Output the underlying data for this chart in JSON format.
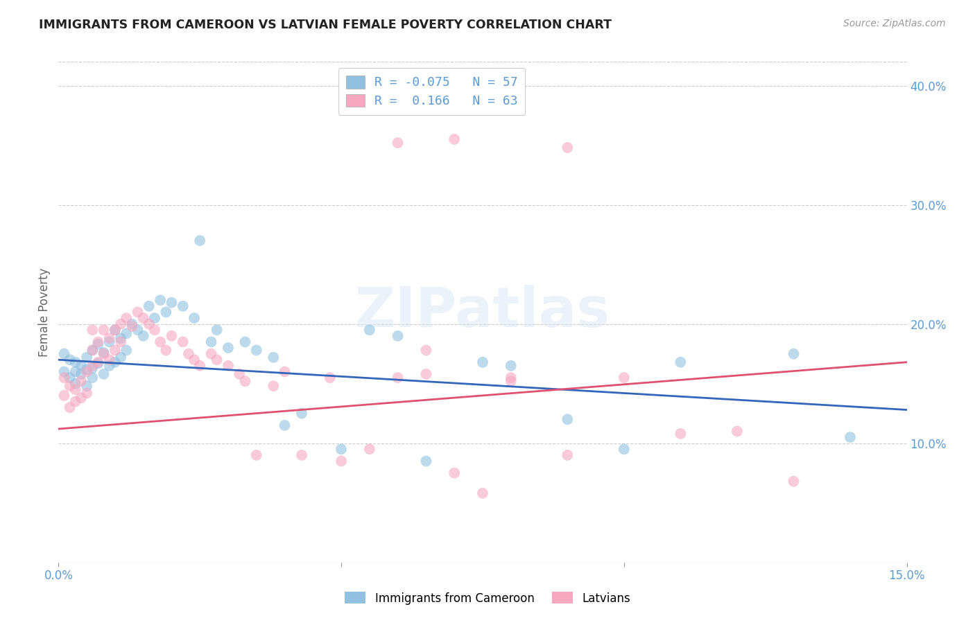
{
  "title": "IMMIGRANTS FROM CAMEROON VS LATVIAN FEMALE POVERTY CORRELATION CHART",
  "source": "Source: ZipAtlas.com",
  "ylabel": "Female Poverty",
  "xlim": [
    0.0,
    0.15
  ],
  "ylim": [
    0.0,
    0.42
  ],
  "yticks_right": [
    0.1,
    0.2,
    0.3,
    0.4
  ],
  "ytick_labels_right": [
    "10.0%",
    "20.0%",
    "30.0%",
    "40.0%"
  ],
  "blue_color": "#92c0e0",
  "pink_color": "#f5a8c0",
  "blue_line_color": "#3366bb",
  "pink_line_color": "#e05070",
  "legend_label1": "Immigrants from Cameroon",
  "legend_label2": "Latvians",
  "R1": -0.075,
  "N1": 57,
  "R2": 0.166,
  "N2": 63,
  "watermark": "ZIPatlas",
  "background_color": "#ffffff",
  "grid_color": "#cccccc",
  "title_color": "#222222",
  "axis_label_color": "#5b9bd5",
  "blue_scatter_x": [
    0.001,
    0.001,
    0.002,
    0.002,
    0.003,
    0.003,
    0.003,
    0.004,
    0.004,
    0.005,
    0.005,
    0.005,
    0.006,
    0.006,
    0.006,
    0.007,
    0.007,
    0.008,
    0.008,
    0.009,
    0.009,
    0.01,
    0.01,
    0.011,
    0.011,
    0.012,
    0.012,
    0.013,
    0.014,
    0.015,
    0.016,
    0.017,
    0.018,
    0.019,
    0.02,
    0.022,
    0.024,
    0.025,
    0.027,
    0.028,
    0.03,
    0.033,
    0.035,
    0.038,
    0.04,
    0.043,
    0.05,
    0.055,
    0.06,
    0.065,
    0.075,
    0.08,
    0.09,
    0.1,
    0.11,
    0.13,
    0.14
  ],
  "blue_scatter_y": [
    0.175,
    0.16,
    0.17,
    0.155,
    0.168,
    0.16,
    0.15,
    0.165,
    0.158,
    0.172,
    0.162,
    0.148,
    0.178,
    0.163,
    0.155,
    0.183,
    0.167,
    0.176,
    0.158,
    0.185,
    0.165,
    0.195,
    0.168,
    0.188,
    0.172,
    0.192,
    0.178,
    0.2,
    0.195,
    0.19,
    0.215,
    0.205,
    0.22,
    0.21,
    0.218,
    0.215,
    0.205,
    0.27,
    0.185,
    0.195,
    0.18,
    0.185,
    0.178,
    0.172,
    0.115,
    0.125,
    0.095,
    0.195,
    0.19,
    0.085,
    0.168,
    0.165,
    0.12,
    0.095,
    0.168,
    0.175,
    0.105
  ],
  "pink_scatter_x": [
    0.001,
    0.001,
    0.002,
    0.002,
    0.003,
    0.003,
    0.004,
    0.004,
    0.005,
    0.005,
    0.006,
    0.006,
    0.006,
    0.007,
    0.007,
    0.008,
    0.008,
    0.009,
    0.009,
    0.01,
    0.01,
    0.011,
    0.011,
    0.012,
    0.013,
    0.014,
    0.015,
    0.016,
    0.017,
    0.018,
    0.019,
    0.02,
    0.022,
    0.023,
    0.024,
    0.025,
    0.027,
    0.028,
    0.03,
    0.032,
    0.033,
    0.035,
    0.038,
    0.04,
    0.043,
    0.048,
    0.05,
    0.055,
    0.06,
    0.065,
    0.07,
    0.075,
    0.08,
    0.09,
    0.1,
    0.11,
    0.12,
    0.06,
    0.065,
    0.07,
    0.08,
    0.09,
    0.13
  ],
  "pink_scatter_y": [
    0.155,
    0.14,
    0.148,
    0.13,
    0.145,
    0.135,
    0.152,
    0.138,
    0.16,
    0.142,
    0.195,
    0.178,
    0.165,
    0.185,
    0.168,
    0.195,
    0.175,
    0.188,
    0.17,
    0.195,
    0.178,
    0.2,
    0.185,
    0.205,
    0.198,
    0.21,
    0.205,
    0.2,
    0.195,
    0.185,
    0.178,
    0.19,
    0.185,
    0.175,
    0.17,
    0.165,
    0.175,
    0.17,
    0.165,
    0.158,
    0.152,
    0.09,
    0.148,
    0.16,
    0.09,
    0.155,
    0.085,
    0.095,
    0.155,
    0.158,
    0.075,
    0.058,
    0.155,
    0.09,
    0.155,
    0.108,
    0.11,
    0.352,
    0.178,
    0.355,
    0.152,
    0.348,
    0.068
  ]
}
